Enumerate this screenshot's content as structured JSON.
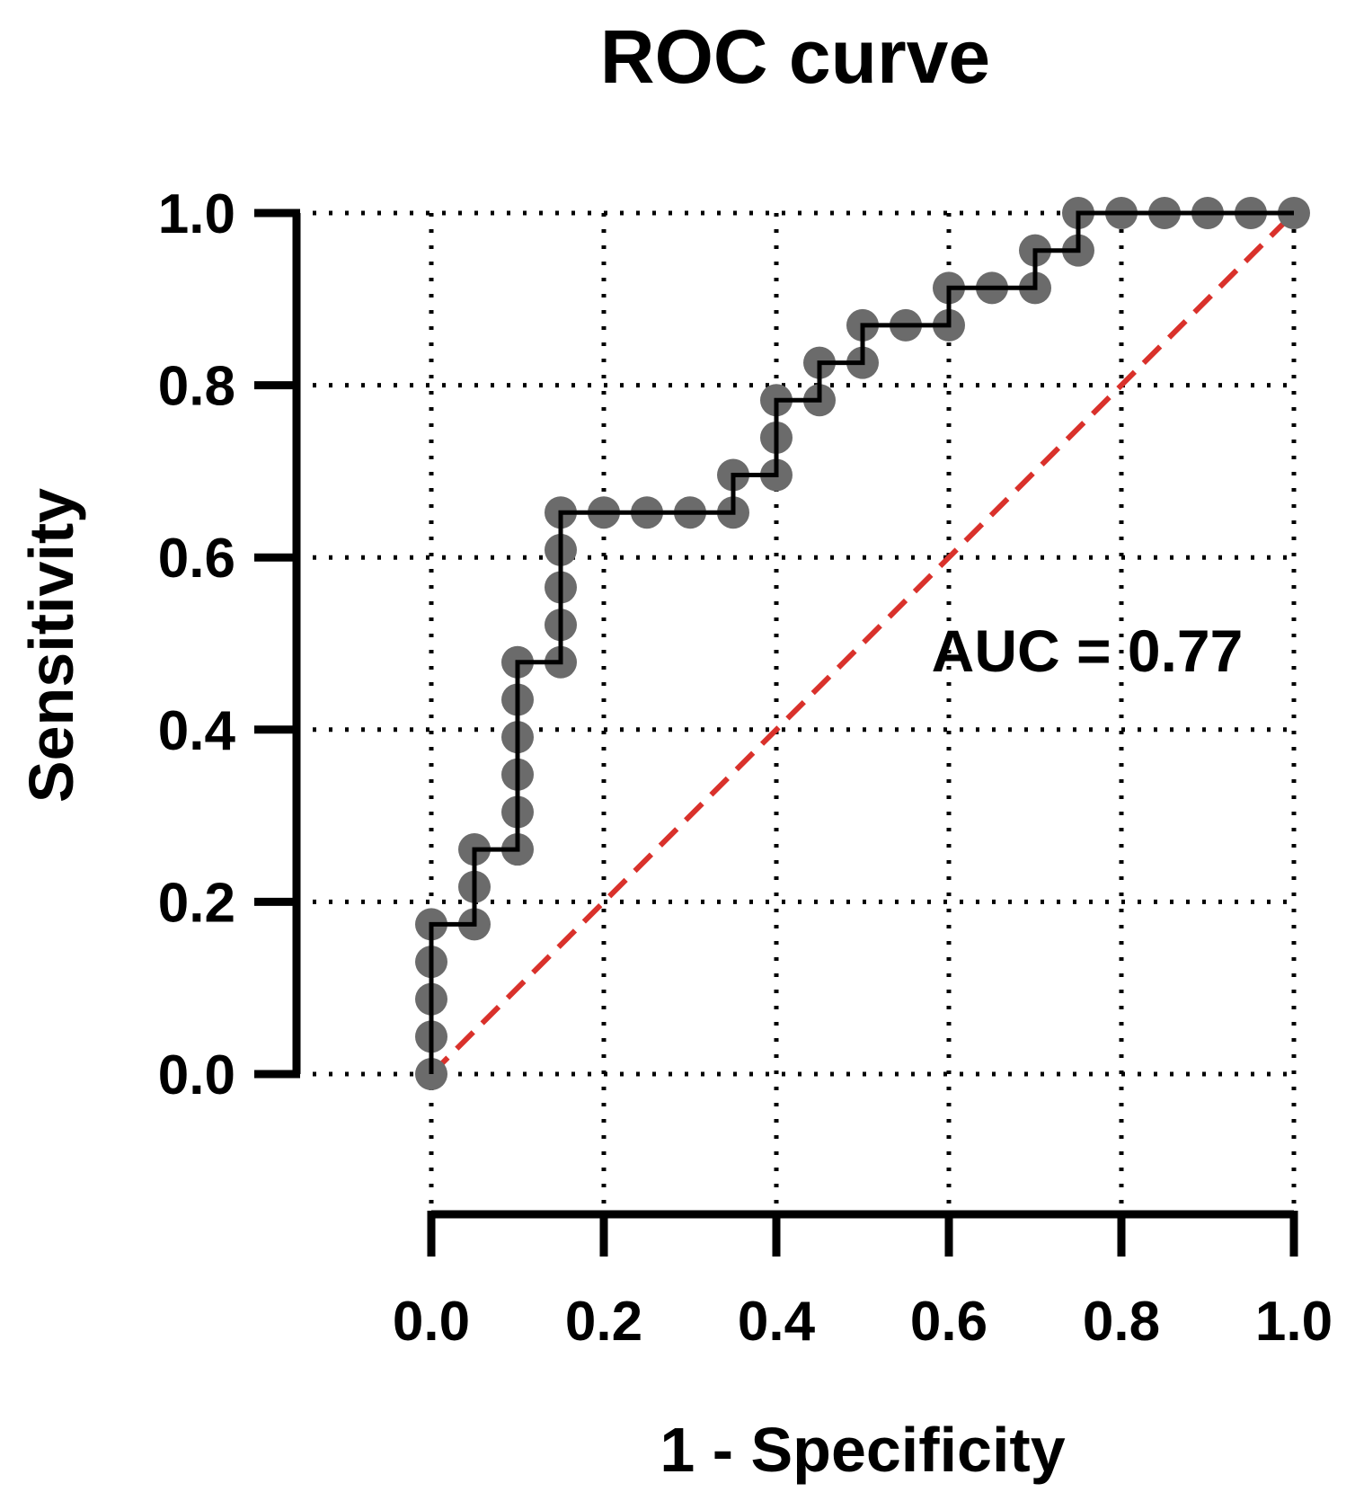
{
  "chart_data": {
    "type": "line",
    "title": "ROC curve",
    "xlabel": "1 - Specificity",
    "ylabel": "Sensitivity",
    "xlim": [
      0,
      1
    ],
    "ylim": [
      0,
      1
    ],
    "x_ticks": [
      "0.0",
      "0.2",
      "0.4",
      "0.6",
      "0.8",
      "1.0"
    ],
    "y_ticks": [
      "0.0",
      "0.2",
      "0.4",
      "0.6",
      "0.8",
      "1.0"
    ],
    "grid": true,
    "annotation": "AUC = 0.77",
    "series": [
      {
        "points": [
          [
            0.0,
            0.0
          ],
          [
            0.0,
            0.0435
          ],
          [
            0.0,
            0.087
          ],
          [
            0.0,
            0.1304
          ],
          [
            0.0,
            0.1739
          ],
          [
            0.05,
            0.1739
          ],
          [
            0.05,
            0.2174
          ],
          [
            0.05,
            0.2609
          ],
          [
            0.1,
            0.2609
          ],
          [
            0.1,
            0.3043
          ],
          [
            0.1,
            0.3478
          ],
          [
            0.1,
            0.3913
          ],
          [
            0.1,
            0.4348
          ],
          [
            0.1,
            0.4783
          ],
          [
            0.15,
            0.4783
          ],
          [
            0.15,
            0.5217
          ],
          [
            0.15,
            0.5652
          ],
          [
            0.15,
            0.6087
          ],
          [
            0.15,
            0.6522
          ],
          [
            0.2,
            0.6522
          ],
          [
            0.25,
            0.6522
          ],
          [
            0.3,
            0.6522
          ],
          [
            0.35,
            0.6522
          ],
          [
            0.35,
            0.6957
          ],
          [
            0.4,
            0.6957
          ],
          [
            0.4,
            0.7391
          ],
          [
            0.4,
            0.7826
          ],
          [
            0.45,
            0.7826
          ],
          [
            0.45,
            0.8261
          ],
          [
            0.5,
            0.8261
          ],
          [
            0.5,
            0.8696
          ],
          [
            0.55,
            0.8696
          ],
          [
            0.6,
            0.8696
          ],
          [
            0.6,
            0.913
          ],
          [
            0.65,
            0.913
          ],
          [
            0.7,
            0.913
          ],
          [
            0.7,
            0.9565
          ],
          [
            0.75,
            0.9565
          ],
          [
            0.75,
            1.0
          ],
          [
            0.8,
            1.0
          ],
          [
            0.85,
            1.0
          ],
          [
            0.9,
            1.0
          ],
          [
            0.95,
            1.0
          ],
          [
            1.0,
            1.0
          ]
        ],
        "line_color": "#000000",
        "marker_color": "#6b6b6b"
      },
      {
        "points": [
          [
            0,
            0
          ],
          [
            1,
            1
          ]
        ],
        "line_style": "dashed",
        "line_color": "#d9312b"
      }
    ]
  }
}
